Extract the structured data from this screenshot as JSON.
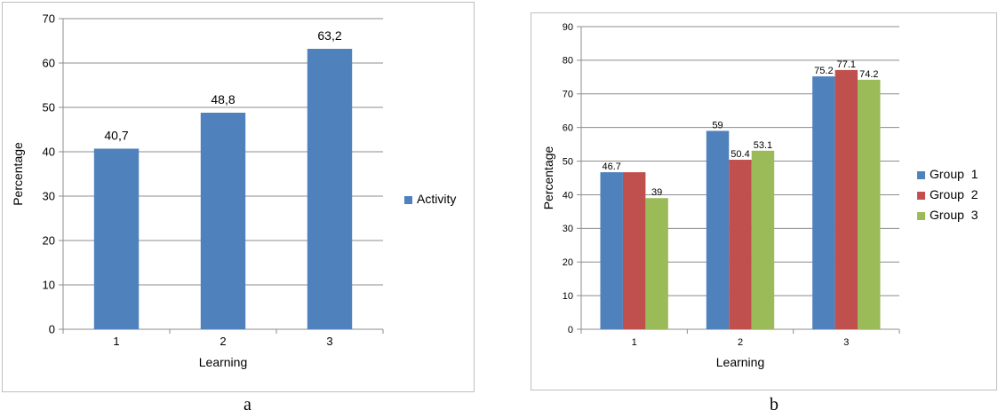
{
  "captions": {
    "a": "a",
    "b": "b"
  },
  "chart_data": [
    {
      "type": "bar",
      "categories": [
        "1",
        "2",
        "3"
      ],
      "series": [
        {
          "name": "Activity",
          "values": [
            40.7,
            48.8,
            63.2
          ],
          "labels": [
            "40,7",
            "48,8",
            "63,2"
          ],
          "color": "#4f81bd"
        }
      ],
      "xlabel": "Learning",
      "ylabel": "Percentage",
      "ylim": [
        0,
        70
      ],
      "yticks": [
        "0",
        "10",
        "20",
        "30",
        "40",
        "50",
        "60",
        "70"
      ],
      "grid": true,
      "legend": "right"
    },
    {
      "type": "bar",
      "categories": [
        "1",
        "2",
        "3"
      ],
      "series": [
        {
          "name": "Group  1",
          "values": [
            46.7,
            59,
            75.2
          ],
          "labels": [
            "46.7",
            "59",
            "75.2"
          ],
          "color": "#4f81bd"
        },
        {
          "name": "Group  2",
          "values": [
            46.7,
            50.4,
            77.1
          ],
          "labels": [
            "",
            "50.4",
            "77.1"
          ],
          "color": "#c0504d"
        },
        {
          "name": "Group  3",
          "values": [
            39,
            53.1,
            74.2
          ],
          "labels": [
            "39",
            "53.1",
            "74.2"
          ],
          "color": "#9bbb59"
        }
      ],
      "xlabel": "Learning",
      "ylabel": "Percentage",
      "ylim": [
        0,
        90
      ],
      "yticks": [
        "0",
        "10",
        "20",
        "30",
        "40",
        "50",
        "60",
        "70",
        "80",
        "90"
      ],
      "grid": true,
      "legend": "right"
    }
  ]
}
